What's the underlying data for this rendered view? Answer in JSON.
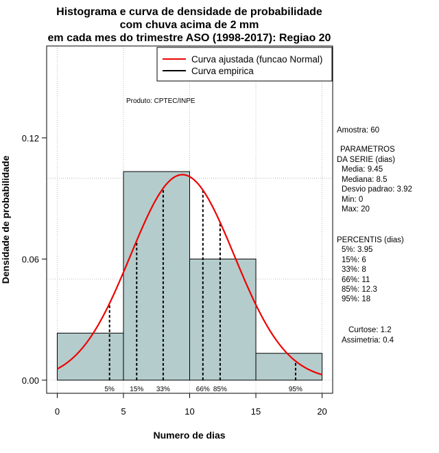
{
  "chart_data": {
    "type": "histogram",
    "title_lines": [
      "Histograma e curva de densidade de probabilidade",
      "com chuva acima de 2 mm",
      "em cada mes do trimestre ASO (1998-2017): Regiao 20"
    ],
    "xlabel": "Numero de dias",
    "ylabel": "Densidade de probabilidade",
    "xlim": [
      -0.8,
      20.8
    ],
    "ylim": [
      -0.0065,
      0.1655
    ],
    "x_ticks": [
      0,
      5,
      10,
      15,
      20
    ],
    "x_tick_labels": [
      "0",
      "5",
      "10",
      "15",
      "20"
    ],
    "y_ticks": [
      0.0,
      0.06,
      0.12
    ],
    "y_tick_labels": [
      "0.00",
      "0.06",
      "0.12"
    ],
    "grid_x": [
      0,
      5,
      10,
      15,
      20
    ],
    "grid_y": [
      0.0,
      0.05,
      0.1
    ],
    "bins": [
      {
        "from": 0,
        "to": 5,
        "density": 0.0233
      },
      {
        "from": 5,
        "to": 10,
        "density": 0.1033
      },
      {
        "from": 10,
        "to": 15,
        "density": 0.06
      },
      {
        "from": 15,
        "to": 20,
        "density": 0.0133
      }
    ],
    "normal_curve": {
      "mean": 9.45,
      "sd": 3.92,
      "x_from": 0,
      "x_to": 20
    },
    "percentile_markers": [
      {
        "x": 3.95,
        "label": "5%"
      },
      {
        "x": 6,
        "label": "15%"
      },
      {
        "x": 8,
        "label": "33%"
      },
      {
        "x": 11,
        "label": "66%"
      },
      {
        "x": 12.3,
        "label": "85%"
      },
      {
        "x": 18,
        "label": "95%"
      }
    ],
    "legend": {
      "position": "top-right",
      "items": [
        {
          "label": "Curva ajustada (funcao Normal)",
          "color": "#ee0000"
        },
        {
          "label": "Curva empirica",
          "color": "#000000"
        }
      ]
    },
    "annotation": "Produto: CPTEC/INPE",
    "colors": {
      "bar_fill": "#b5cccc",
      "curve": "#ee0000",
      "grid": "#aaaaaa",
      "markers": "#000000"
    }
  },
  "side_panel": {
    "sample": "Amostra: 60",
    "params_title_1": "PARAMETROS",
    "params_title_2": "DA SERIE (dias)",
    "params": [
      "Media: 9.45",
      "Mediana: 8.5",
      "Desvio padrao: 3.92",
      "Min: 0",
      "Max: 20"
    ],
    "percentiles_title": "PERCENTIS (dias)",
    "percentiles": [
      "5%: 3.95",
      "15%: 6",
      "33%: 8",
      "66%: 11",
      "85%: 12.3",
      "95%: 18"
    ],
    "kurtosis": "Curtose: 1.2",
    "skewness": "Assimetria: 0.4"
  }
}
